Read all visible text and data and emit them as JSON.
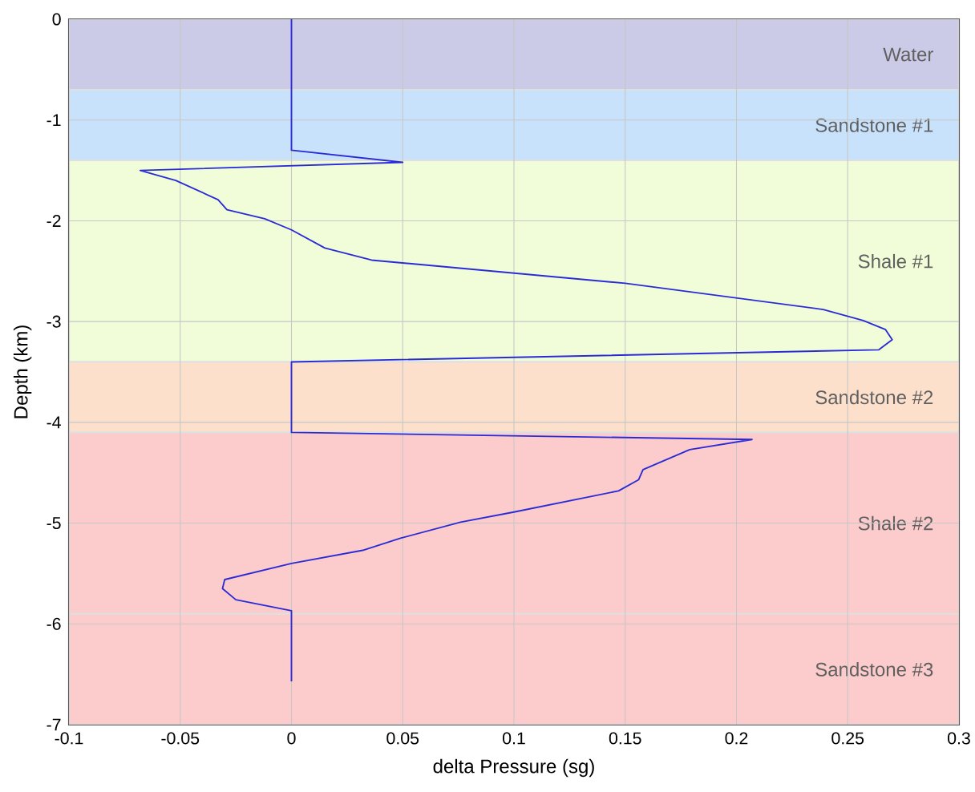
{
  "chart_data": {
    "type": "line",
    "xlabel": "delta Pressure (sg)",
    "ylabel": "Depth (km)",
    "xlim": [
      -0.1,
      0.3
    ],
    "ylim": [
      -7,
      0
    ],
    "xticks": [
      -0.1,
      -0.05,
      0,
      0.05,
      0.1,
      0.15,
      0.2,
      0.25,
      0.3
    ],
    "yticks": [
      -7,
      -6,
      -5,
      -4,
      -3,
      -2,
      -1,
      0
    ],
    "grid": true,
    "marker": "none",
    "line_style": "solid",
    "series": [
      {
        "color": "#2b2bd6",
        "x": [
          0,
          0,
          0.05,
          -0.068,
          -0.052,
          -0.033,
          -0.029,
          -0.012,
          0,
          0.015,
          0.036,
          0.15,
          0.239,
          0.257,
          0.267,
          0.27,
          0.264,
          0,
          0,
          0.207,
          0.179,
          0.158,
          0.156,
          0.147,
          0.1,
          0.076,
          0.049,
          0.032,
          0,
          -0.03,
          -0.031,
          -0.025,
          0,
          0
        ],
        "values": [
          0,
          -1.3,
          -1.42,
          -1.5,
          -1.6,
          -1.79,
          -1.89,
          -1.98,
          -2.09,
          -2.27,
          -2.39,
          -2.62,
          -2.88,
          -2.99,
          -3.08,
          -3.18,
          -3.28,
          -3.4,
          -4.1,
          -4.17,
          -4.27,
          -4.47,
          -4.57,
          -4.68,
          -4.89,
          -4.99,
          -5.15,
          -5.27,
          -5.4,
          -5.56,
          -5.65,
          -5.76,
          -5.87,
          -6.57
        ]
      }
    ],
    "bands": [
      {
        "axis": "y",
        "from": 0,
        "to": -0.7,
        "label": "Water",
        "color": "#cbcbe8"
      },
      {
        "axis": "y",
        "from": -0.7,
        "to": -1.4,
        "label": "Sandstone #1",
        "color": "#c9e2fb"
      },
      {
        "axis": "y",
        "from": -1.4,
        "to": -3.4,
        "label": "Shale #1",
        "color": "#f1fdd8"
      },
      {
        "axis": "y",
        "from": -3.4,
        "to": -4.1,
        "label": "Sandstone #2",
        "color": "#fde0cc"
      },
      {
        "axis": "y",
        "from": -4.1,
        "to": -5.9,
        "label": "Shale #2",
        "color": "#fccccc"
      },
      {
        "axis": "y",
        "from": -5.9,
        "to": -7,
        "label": "Sandstone #3",
        "color": "#fccccc"
      }
    ]
  }
}
